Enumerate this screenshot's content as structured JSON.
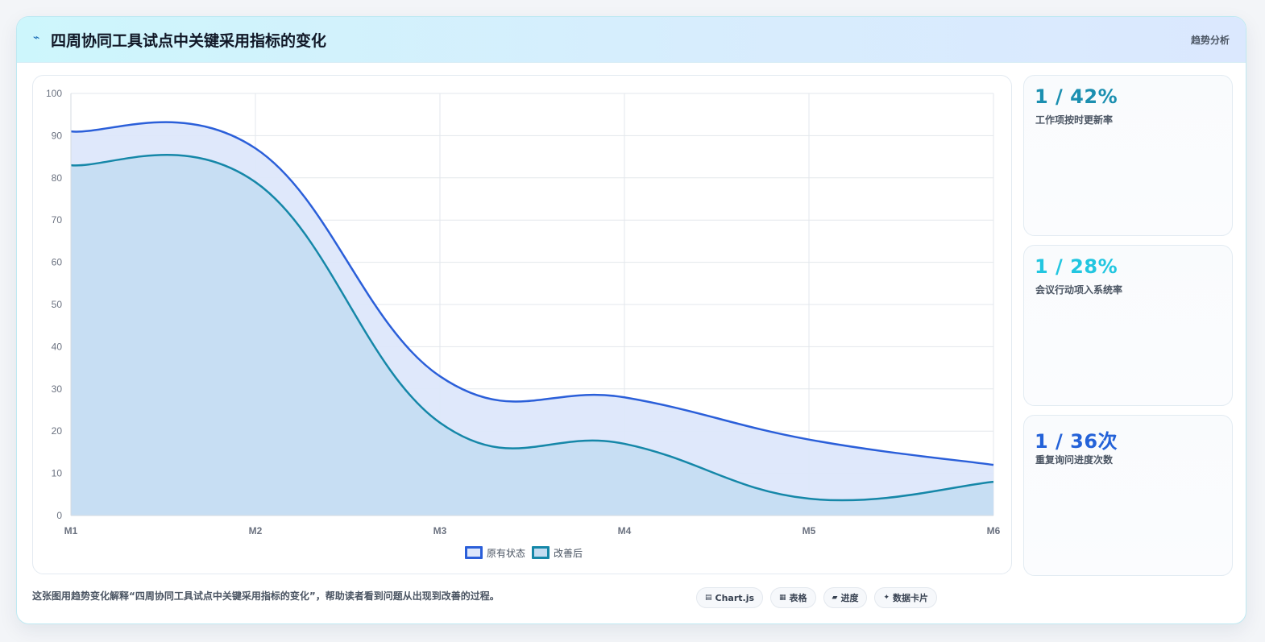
{
  "header": {
    "icon": "spark-icon",
    "icon_glyph": "⌁",
    "title": "四周协同工具试点中关键采用指标的变化",
    "tag": "趋势分析"
  },
  "chart_data": {
    "type": "area",
    "categories": [
      "M1",
      "M2",
      "M3",
      "M4",
      "M5",
      "M6"
    ],
    "ylim": [
      0,
      100
    ],
    "yticks": [
      0,
      10,
      20,
      30,
      40,
      50,
      60,
      70,
      80,
      90,
      100
    ],
    "grid": true,
    "legend_position": "bottom",
    "series": [
      {
        "name": "原有状态",
        "values": [
          91,
          87,
          33,
          28,
          18,
          12
        ],
        "color": "#2b5fd9",
        "fill": "#dde7fb"
      },
      {
        "name": "改善后",
        "values": [
          83,
          79,
          22,
          17,
          4,
          8
        ],
        "color": "#1587a8",
        "fill": "#c3dcf1"
      }
    ]
  },
  "kpis": [
    {
      "value": "1 / 42%",
      "label": "工作项按时更新率",
      "color": "#1b8fb0"
    },
    {
      "value": "1 / 28%",
      "label": "会议行动项入系统率",
      "color": "#22c6e0"
    },
    {
      "value": "1 / 36次",
      "label": "重复询问进度次数",
      "color": "#2462d8"
    }
  ],
  "footer": {
    "description": "这张图用趋势变化解释“四周协同工具试点中关键采用指标的变化”，帮助读者看到问题从出现到改善的过程。",
    "chips": [
      {
        "icon": "chart-icon",
        "glyph": "▤",
        "label": "Chart.js"
      },
      {
        "icon": "table-icon",
        "glyph": "▦",
        "label": "表格"
      },
      {
        "icon": "progress-icon",
        "glyph": "▰",
        "label": "进度"
      },
      {
        "icon": "sparkle-icon",
        "glyph": "✦",
        "label": "数据卡片"
      }
    ]
  }
}
